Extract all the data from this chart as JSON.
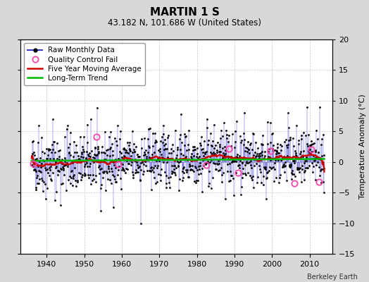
{
  "title": "MARTIN 1 S",
  "subtitle": "43.182 N, 101.686 W (United States)",
  "ylabel": "Temperature Anomaly (°C)",
  "credit": "Berkeley Earth",
  "ylim": [
    -15,
    20
  ],
  "yticks": [
    -15,
    -10,
    -5,
    0,
    5,
    10,
    15,
    20
  ],
  "xlim": [
    1933,
    2016
  ],
  "xticks": [
    1940,
    1950,
    1960,
    1970,
    1980,
    1990,
    2000,
    2010
  ],
  "bg_color": "#d8d8d8",
  "plot_bg": "#ffffff",
  "raw_color": "#3333cc",
  "raw_dot_color": "#000000",
  "moving_avg_color": "#cc0000",
  "trend_color": "#00bb00",
  "qc_fail_color": "#ff44aa",
  "seed": 42,
  "n_months": 936,
  "start_year": 1936.0,
  "noise_std": 2.3,
  "moving_avg_window": 60,
  "qc_fail_years": [
    1936.5,
    1953.2,
    1959.0,
    1982.5,
    1988.5,
    1991.0,
    1999.5,
    2006.0,
    2010.5,
    2012.5
  ],
  "qc_fail_values": [
    -0.3,
    4.1,
    -0.4,
    -0.5,
    2.1,
    -1.8,
    1.8,
    -3.5,
    2.0,
    -3.2
  ],
  "legend_fontsize": 7.5,
  "title_fontsize": 11,
  "subtitle_fontsize": 8.5,
  "tick_fontsize": 8,
  "ylabel_fontsize": 8
}
